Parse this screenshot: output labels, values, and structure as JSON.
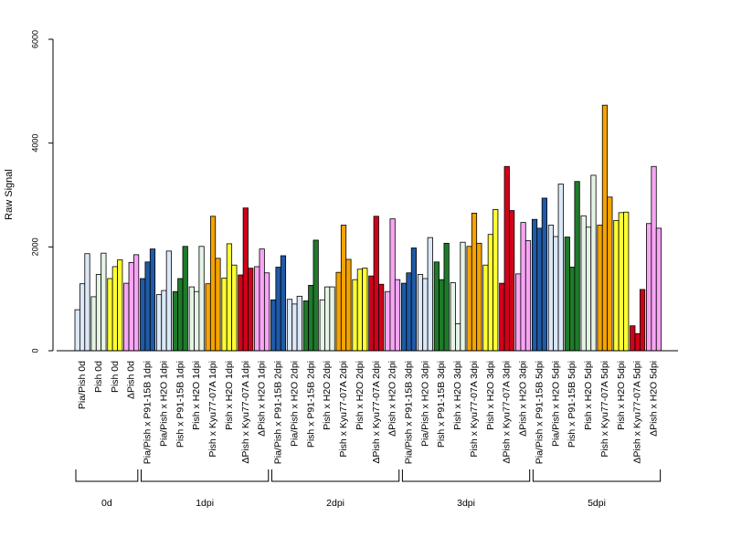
{
  "chart_data": {
    "type": "bar",
    "ylabel": "Raw Signal",
    "ylim": [
      0,
      6000
    ],
    "yticks": [
      0,
      2000,
      4000,
      6000
    ],
    "grid": false,
    "legend": "none",
    "colors": {
      "light_blue": "#dbe8f7",
      "dark_blue": "#1f5aa6",
      "white_ish": "#f4f4f4",
      "dark_green": "#1e7a2a",
      "light_green": "#e6f4e6",
      "orange": "#f5a300",
      "yellow": "#ffff33",
      "red": "#d0021b",
      "pink": "#f8a5f5"
    },
    "categories": [
      {
        "label": "Pia/Pish 0d",
        "color": "light_blue",
        "values": [
          790,
          1290,
          1870
        ]
      },
      {
        "label": "Pish 0d",
        "color": "light_green",
        "values": [
          1040,
          1470,
          1880
        ]
      },
      {
        "label": "Pish 0d",
        "color": "yellow",
        "values": [
          1390,
          1620,
          1750
        ]
      },
      {
        "label": "ΔPish 0d",
        "color": "pink",
        "values": [
          1300,
          1700,
          1850
        ]
      },
      {
        "label": "Pia/Pish x P91-15B 1dpi",
        "color": "dark_blue",
        "values": [
          1390,
          1710,
          1960
        ]
      },
      {
        "label": "Pia/Pish x H2O 1dpi",
        "color": "light_blue",
        "values": [
          1080,
          1160,
          1920
        ]
      },
      {
        "label": "Pish x P91-15B 1dpi",
        "color": "dark_green",
        "values": [
          1140,
          1390,
          2010
        ]
      },
      {
        "label": "Pish x H2O 1dpi",
        "color": "light_green",
        "values": [
          1230,
          1140,
          2010
        ]
      },
      {
        "label": "Pish x Kyu77-07A 1dpi",
        "color": "orange",
        "values": [
          1290,
          2590,
          1780
        ]
      },
      {
        "label": "Pish x H2O 1dpi",
        "color": "yellow",
        "values": [
          1400,
          2060,
          1650
        ]
      },
      {
        "label": "ΔPish x Kyu77-07A 1dpi",
        "color": "red",
        "values": [
          1460,
          2750,
          1590
        ]
      },
      {
        "label": "ΔPish x H2O 1dpi",
        "color": "pink",
        "values": [
          1620,
          1960,
          1500
        ]
      },
      {
        "label": "Pia/Pish x P91-15B 2dpi",
        "color": "dark_blue",
        "values": [
          980,
          1610,
          1830
        ]
      },
      {
        "label": "Pia/Pish x H2O 2dpi",
        "color": "light_blue",
        "values": [
          990,
          900,
          1050
        ]
      },
      {
        "label": "Pish x P91-15B 2dpi",
        "color": "dark_green",
        "values": [
          960,
          1260,
          2130
        ]
      },
      {
        "label": "Pish x H2O 2dpi",
        "color": "light_green",
        "values": [
          980,
          1230,
          1230
        ]
      },
      {
        "label": "Pish x Kyu77-07A 2dpi",
        "color": "orange",
        "values": [
          1510,
          2420,
          1760
        ]
      },
      {
        "label": "Pish x H2O 2dpi",
        "color": "yellow",
        "values": [
          1370,
          1570,
          1590
        ]
      },
      {
        "label": "ΔPish x Kyu77-07A 2dpi",
        "color": "red",
        "values": [
          1440,
          2590,
          1280
        ]
      },
      {
        "label": "ΔPish x H2O 2dpi",
        "color": "pink",
        "values": [
          1140,
          2540,
          1370
        ]
      },
      {
        "label": "Pia/Pish x P91-15B 3dpi",
        "color": "dark_blue",
        "values": [
          1300,
          1500,
          1980
        ]
      },
      {
        "label": "Pia/Pish x H2O 3dpi",
        "color": "light_blue",
        "values": [
          1470,
          1390,
          2180
        ]
      },
      {
        "label": "Pish x P91-15B 3dpi",
        "color": "dark_green",
        "values": [
          1710,
          1370,
          2070
        ]
      },
      {
        "label": "Pish x H2O 3dpi",
        "color": "light_green",
        "values": [
          1310,
          520,
          2090
        ]
      },
      {
        "label": "Pish x Kyu77-07A 3dpi",
        "color": "orange",
        "values": [
          2010,
          2650,
          2070
        ]
      },
      {
        "label": "Pish x H2O 3dpi",
        "color": "yellow",
        "values": [
          1650,
          2240,
          2720
        ]
      },
      {
        "label": "ΔPish x Kyu77-07A 3dpi",
        "color": "red",
        "values": [
          1300,
          3550,
          2700
        ]
      },
      {
        "label": "ΔPish x H2O 3dpi",
        "color": "pink",
        "values": [
          1480,
          2470,
          2120
        ]
      },
      {
        "label": "Pia/Pish x P91-15B 5dpi",
        "color": "dark_blue",
        "values": [
          2530,
          2360,
          2940
        ]
      },
      {
        "label": "Pia/Pish x H2O 5dpi",
        "color": "light_blue",
        "values": [
          2420,
          2200,
          3210
        ]
      },
      {
        "label": "Pish x P91-15B 5dpi",
        "color": "dark_green",
        "values": [
          2190,
          1610,
          3260
        ]
      },
      {
        "label": "Pish x H2O 5dpi",
        "color": "light_green",
        "values": [
          2600,
          2380,
          3380
        ]
      },
      {
        "label": "Pish x Kyu77-07A 5dpi",
        "color": "orange",
        "values": [
          2420,
          4730,
          2960
        ]
      },
      {
        "label": "Pish x H2O 5dpi",
        "color": "yellow",
        "values": [
          2510,
          2660,
          2670
        ]
      },
      {
        "label": "ΔPish x Kyu77-07A 5dpi",
        "color": "red",
        "values": [
          480,
          330,
          1180
        ]
      },
      {
        "label": "ΔPish x H2O 5dpi",
        "color": "pink",
        "values": [
          2450,
          3550,
          2360
        ]
      }
    ],
    "groups": [
      {
        "label": "0d",
        "start": 0,
        "end": 3
      },
      {
        "label": "1dpi",
        "start": 4,
        "end": 11
      },
      {
        "label": "2dpi",
        "start": 12,
        "end": 19
      },
      {
        "label": "3dpi",
        "start": 20,
        "end": 27
      },
      {
        "label": "5dpi",
        "start": 28,
        "end": 35
      }
    ]
  }
}
